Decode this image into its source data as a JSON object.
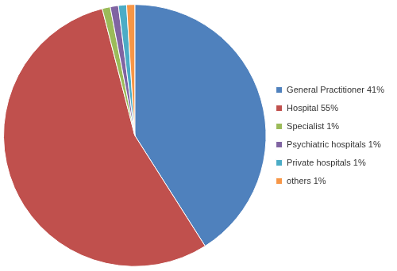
{
  "chart_data": {
    "type": "pie",
    "categories": [
      "General Practitioner 41%",
      "Hospital 55%",
      "Specialist 1%",
      "Psychiatric hospitals 1%",
      "Private hospitals 1%",
      "others 1%"
    ],
    "values": [
      41,
      55,
      1,
      1,
      1,
      1
    ],
    "colors": [
      "#4f81bd",
      "#c0504d",
      "#9bbb59",
      "#8064a2",
      "#4bacc6",
      "#f79646"
    ],
    "legend": "right"
  }
}
